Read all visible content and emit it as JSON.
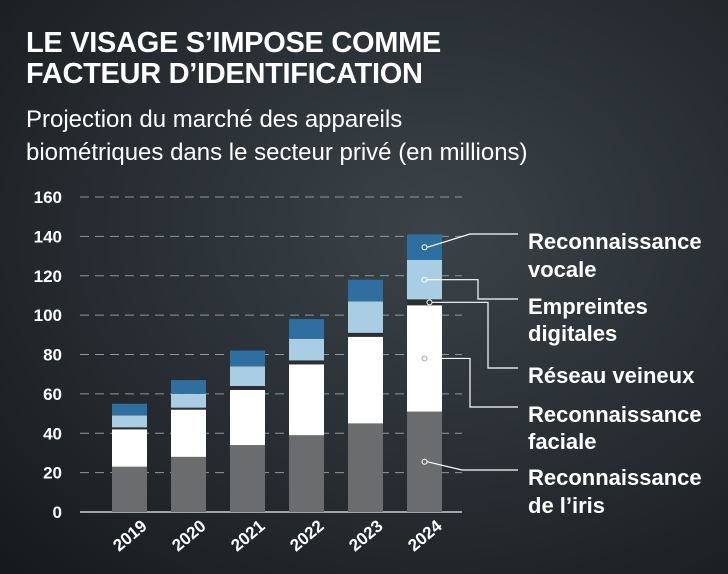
{
  "title_line1": "LE VISAGE S’IMPOSE COMME",
  "title_line2": "FACTEUR D’IDENTIFICATION",
  "subtitle_line1": "Projection du marché des appareils",
  "subtitle_line2": "biométriques dans le secteur privé (en millions)",
  "chart_data": {
    "type": "bar",
    "stacked": true,
    "categories": [
      "2019",
      "2020",
      "2021",
      "2022",
      "2023",
      "2024"
    ],
    "ylim": [
      0,
      160
    ],
    "yticks": [
      0,
      20,
      40,
      60,
      80,
      100,
      120,
      140,
      160
    ],
    "grid": true,
    "series": [
      {
        "name": "Reconnaissance de l’iris",
        "label_lines": [
          "Reconnaissance",
          "de l’iris"
        ],
        "color": "#6b6c6e",
        "values": [
          23,
          28,
          34,
          39,
          45,
          51
        ]
      },
      {
        "name": "Reconnaissance faciale",
        "label_lines": [
          "Reconnaissance",
          "faciale"
        ],
        "color": "#ffffff",
        "values": [
          19,
          24,
          28,
          36,
          44,
          54
        ]
      },
      {
        "name": "Réseau veineux",
        "label_lines": [
          "Réseau veineux"
        ],
        "color": "#2b2f33",
        "values": [
          1,
          1,
          2,
          2,
          2,
          3
        ]
      },
      {
        "name": "Empreintes digitales",
        "label_lines": [
          "Empreintes",
          "digitales"
        ],
        "color": "#a9cde2",
        "values": [
          6,
          7,
          10,
          11,
          16,
          20
        ]
      },
      {
        "name": "Reconnaissance vocale",
        "label_lines": [
          "Reconnaissance",
          "vocale"
        ],
        "color": "#2f6fa0",
        "values": [
          6,
          7,
          8,
          10,
          11,
          13
        ]
      }
    ],
    "legend": "right"
  }
}
